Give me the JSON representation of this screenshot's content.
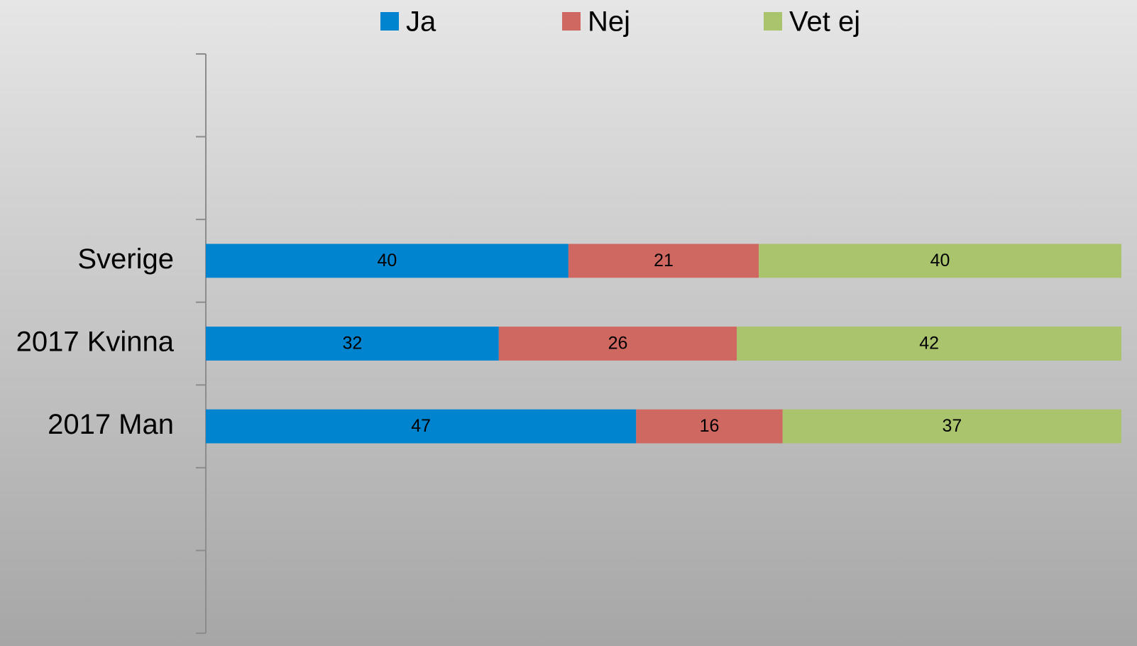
{
  "chart_data": {
    "type": "bar",
    "orientation": "horizontal",
    "stacking": "percent",
    "categories": [
      null,
      null,
      "Sverige",
      "2017 Kvinna",
      "2017 Man",
      null,
      null
    ],
    "series": [
      {
        "name": "Ja",
        "color": "#0084d0",
        "values": [
          null,
          null,
          40,
          32,
          47,
          null,
          null
        ]
      },
      {
        "name": "Nej",
        "color": "#d06862",
        "values": [
          null,
          null,
          21,
          26,
          16,
          null,
          null
        ]
      },
      {
        "name": "Vet ej",
        "color": "#a9c46c",
        "values": [
          null,
          null,
          40,
          42,
          37,
          null,
          null
        ]
      }
    ],
    "legend": "top",
    "grid": false
  }
}
